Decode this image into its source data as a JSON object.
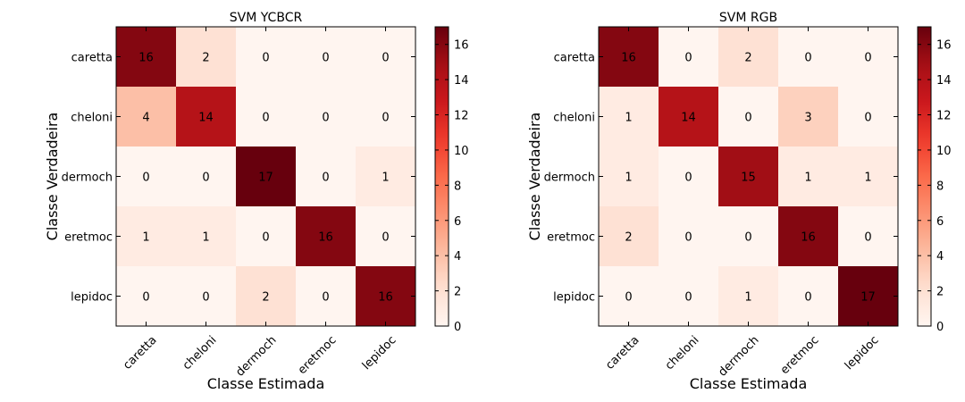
{
  "chart_data": [
    {
      "type": "heatmap",
      "title": "SVM YCBCR",
      "xlabel": "Classe Estimada",
      "ylabel": "Classe Verdadeira",
      "x_categories": [
        "caretta",
        "cheloni",
        "dermoch",
        "eretmoc",
        "lepidoc"
      ],
      "y_categories": [
        "caretta",
        "cheloni",
        "dermoch",
        "eretmoc",
        "lepidoc"
      ],
      "values": [
        [
          16,
          2,
          0,
          0,
          0
        ],
        [
          4,
          14,
          0,
          0,
          0
        ],
        [
          0,
          0,
          17,
          0,
          1
        ],
        [
          1,
          1,
          0,
          16,
          0
        ],
        [
          0,
          0,
          2,
          0,
          16
        ]
      ],
      "colorbar": {
        "min": 0,
        "max": 17,
        "ticks": [
          "0",
          "2",
          "4",
          "6",
          "8",
          "10",
          "12",
          "14",
          "16"
        ]
      },
      "colormap": "Reds"
    },
    {
      "type": "heatmap",
      "title": "SVM RGB",
      "xlabel": "Classe Estimada",
      "ylabel": "Classe Verdadeira",
      "x_categories": [
        "caretta",
        "cheloni",
        "dermoch",
        "eretmoc",
        "lepidoc"
      ],
      "y_categories": [
        "caretta",
        "cheloni",
        "dermoch",
        "eretmoc",
        "lepidoc"
      ],
      "values": [
        [
          16,
          0,
          2,
          0,
          0
        ],
        [
          1,
          14,
          0,
          3,
          0
        ],
        [
          1,
          0,
          15,
          1,
          1
        ],
        [
          2,
          0,
          0,
          16,
          0
        ],
        [
          0,
          0,
          1,
          0,
          17
        ]
      ],
      "colorbar": {
        "min": 0,
        "max": 17,
        "ticks": [
          "0",
          "2",
          "4",
          "6",
          "8",
          "10",
          "12",
          "14",
          "16"
        ]
      },
      "colormap": "Reds"
    }
  ]
}
